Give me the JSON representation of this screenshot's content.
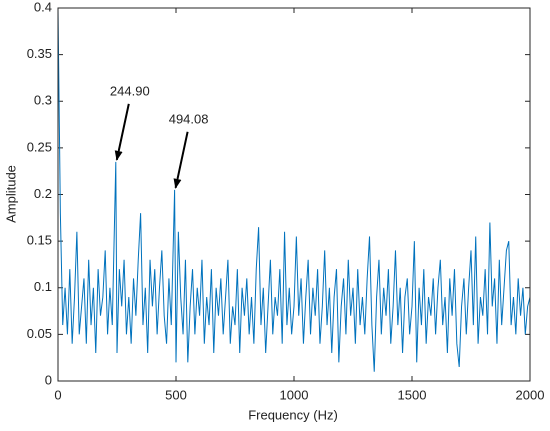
{
  "chart_data": {
    "type": "line",
    "xlabel": "Frequency (Hz)",
    "ylabel": "Amplitude",
    "x": [
      0,
      10,
      20,
      30,
      40,
      50,
      60,
      70,
      80,
      90,
      100,
      110,
      120,
      130,
      140,
      150,
      160,
      170,
      180,
      190,
      200,
      210,
      220,
      230,
      244.9,
      250,
      260,
      270,
      280,
      290,
      300,
      310,
      320,
      330,
      340,
      350,
      360,
      370,
      380,
      390,
      400,
      410,
      420,
      430,
      440,
      450,
      460,
      470,
      480,
      494.08,
      500,
      510,
      520,
      530,
      540,
      550,
      560,
      570,
      580,
      590,
      600,
      610,
      620,
      630,
      640,
      650,
      660,
      670,
      680,
      690,
      700,
      710,
      720,
      730,
      740,
      750,
      760,
      770,
      780,
      790,
      800,
      810,
      820,
      830,
      840,
      850,
      860,
      870,
      880,
      890,
      900,
      910,
      920,
      930,
      940,
      950,
      960,
      970,
      980,
      990,
      1000,
      1010,
      1020,
      1030,
      1040,
      1050,
      1060,
      1070,
      1080,
      1090,
      1100,
      1110,
      1120,
      1130,
      1140,
      1150,
      1160,
      1170,
      1180,
      1190,
      1200,
      1210,
      1220,
      1230,
      1240,
      1250,
      1260,
      1270,
      1280,
      1290,
      1300,
      1310,
      1320,
      1330,
      1340,
      1350,
      1360,
      1370,
      1380,
      1390,
      1400,
      1410,
      1420,
      1430,
      1440,
      1450,
      1460,
      1470,
      1480,
      1490,
      1500,
      1510,
      1520,
      1530,
      1540,
      1550,
      1560,
      1570,
      1580,
      1590,
      1600,
      1610,
      1620,
      1630,
      1640,
      1650,
      1660,
      1670,
      1680,
      1690,
      1700,
      1710,
      1720,
      1730,
      1740,
      1750,
      1760,
      1770,
      1780,
      1790,
      1800,
      1810,
      1820,
      1830,
      1840,
      1850,
      1860,
      1870,
      1880,
      1890,
      1900,
      1910,
      1920,
      1930,
      1940,
      1950,
      1960,
      1970,
      1980,
      1990,
      2000
    ],
    "values": [
      0.4,
      0.18,
      0.06,
      0.1,
      0.05,
      0.12,
      0.04,
      0.09,
      0.16,
      0.05,
      0.08,
      0.11,
      0.04,
      0.13,
      0.06,
      0.1,
      0.03,
      0.12,
      0.07,
      0.09,
      0.14,
      0.05,
      0.1,
      0.06,
      0.235,
      0.03,
      0.12,
      0.08,
      0.13,
      0.05,
      0.09,
      0.04,
      0.11,
      0.07,
      0.13,
      0.18,
      0.06,
      0.1,
      0.03,
      0.13,
      0.08,
      0.12,
      0.05,
      0.1,
      0.14,
      0.07,
      0.04,
      0.11,
      0.06,
      0.205,
      0.02,
      0.16,
      0.09,
      0.05,
      0.13,
      0.02,
      0.08,
      0.12,
      0.05,
      0.1,
      0.07,
      0.13,
      0.04,
      0.09,
      0.06,
      0.12,
      0.03,
      0.1,
      0.07,
      0.11,
      0.05,
      0.09,
      0.13,
      0.04,
      0.08,
      0.06,
      0.12,
      0.03,
      0.1,
      0.07,
      0.11,
      0.05,
      0.09,
      0.04,
      0.12,
      0.165,
      0.06,
      0.1,
      0.03,
      0.08,
      0.13,
      0.05,
      0.09,
      0.07,
      0.12,
      0.04,
      0.16,
      0.06,
      0.1,
      0.05,
      0.08,
      0.155,
      0.07,
      0.11,
      0.04,
      0.09,
      0.13,
      0.05,
      0.1,
      0.07,
      0.12,
      0.04,
      0.08,
      0.14,
      0.06,
      0.1,
      0.03,
      0.09,
      0.12,
      0.02,
      0.08,
      0.11,
      0.05,
      0.13,
      0.07,
      0.1,
      0.04,
      0.12,
      0.06,
      0.09,
      0.05,
      0.11,
      0.155,
      0.06,
      0.01,
      0.09,
      0.13,
      0.05,
      0.1,
      0.07,
      0.12,
      0.04,
      0.08,
      0.14,
      0.06,
      0.1,
      0.03,
      0.09,
      0.11,
      0.05,
      0.08,
      0.15,
      0.02,
      0.1,
      0.06,
      0.12,
      0.04,
      0.09,
      0.07,
      0.11,
      0.05,
      0.1,
      0.13,
      0.06,
      0.09,
      0.03,
      0.11,
      0.07,
      0.12,
      0.04,
      0.015,
      0.08,
      0.11,
      0.05,
      0.1,
      0.14,
      0.06,
      0.155,
      0.04,
      0.09,
      0.07,
      0.12,
      0.05,
      0.17,
      0.08,
      0.11,
      0.04,
      0.13,
      0.06,
      0.1,
      0.14,
      0.15,
      0.06,
      0.09,
      0.05,
      0.11,
      0.07,
      0.1,
      0.05,
      0.08,
      0.09
    ],
    "color": "#0072bd",
    "xlim": [
      0,
      2000
    ],
    "xticks": [
      0,
      500,
      1000,
      1500,
      2000
    ],
    "ylim": [
      0,
      0.4
    ],
    "yticks": [
      0,
      0.05,
      0.1,
      0.15,
      0.2,
      0.25,
      0.3,
      0.35,
      0.4
    ],
    "annotations": [
      {
        "text": "244.90",
        "x": 244.9,
        "y": 0.235
      },
      {
        "text": "494.08",
        "x": 494.08,
        "y": 0.205
      }
    ]
  }
}
